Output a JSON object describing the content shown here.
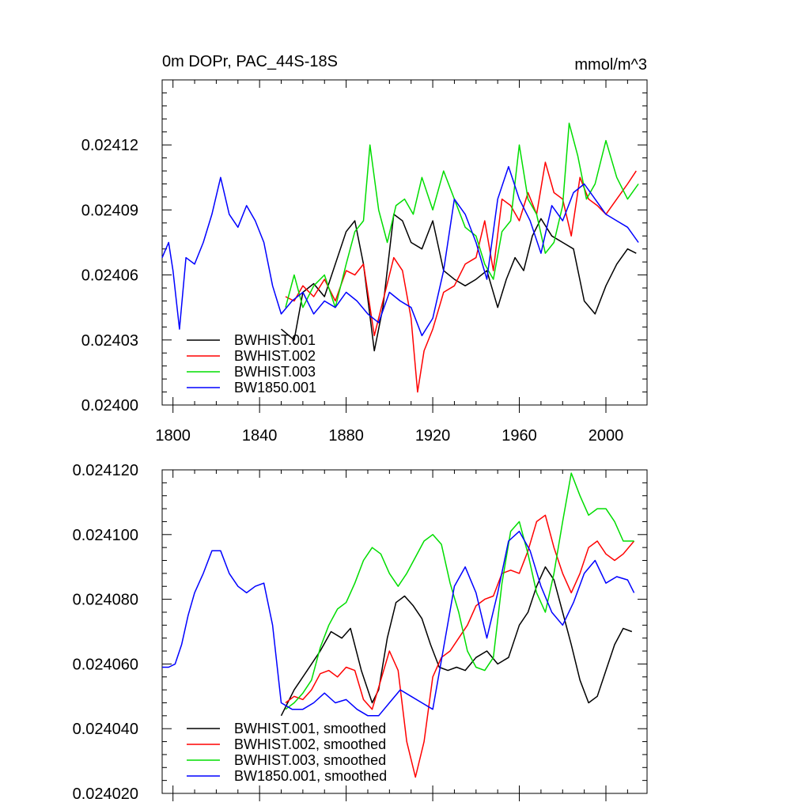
{
  "chart_data": [
    {
      "type": "line",
      "title": "0m DOPr, PAC_44S-18S",
      "units": "mmol/m^3",
      "xlim": [
        1795,
        2019
      ],
      "ylim": [
        0.024,
        0.02415
      ],
      "x_ticks": [
        "1800",
        "1840",
        "1880",
        "1920",
        "1960",
        "2000"
      ],
      "y_ticks": [
        "0.02400",
        "0.02403",
        "0.02406",
        "0.02409",
        "0.02412"
      ],
      "series": [
        {
          "name": "BWHIST.001",
          "color": "#000000",
          "x": [
            1850,
            1856,
            1860,
            1865,
            1870,
            1875,
            1880,
            1884,
            1888,
            1893,
            1897,
            1902,
            1906,
            1910,
            1915,
            1920,
            1925,
            1930,
            1935,
            1940,
            1945,
            1950,
            1954,
            1958,
            1962,
            1966,
            1970,
            1975,
            1980,
            1985,
            1990,
            1995,
            2000,
            2005,
            2010,
            2014
          ],
          "y": [
            0.024035,
            0.02403,
            0.024052,
            0.024056,
            0.02405,
            0.024065,
            0.02408,
            0.024085,
            0.024065,
            0.024025,
            0.024045,
            0.024088,
            0.024085,
            0.024075,
            0.024072,
            0.024085,
            0.024062,
            0.024058,
            0.024055,
            0.024058,
            0.024062,
            0.024045,
            0.024058,
            0.024068,
            0.024062,
            0.024078,
            0.024086,
            0.024078,
            0.024075,
            0.024072,
            0.024048,
            0.024042,
            0.024055,
            0.024065,
            0.024072,
            0.02407
          ]
        },
        {
          "name": "BWHIST.002",
          "color": "#ff0000",
          "x": [
            1852,
            1856,
            1860,
            1865,
            1870,
            1875,
            1880,
            1884,
            1888,
            1893,
            1897,
            1902,
            1906,
            1910,
            1913,
            1916,
            1920,
            1925,
            1930,
            1935,
            1940,
            1944,
            1948,
            1952,
            1956,
            1960,
            1964,
            1968,
            1972,
            1976,
            1980,
            1984,
            1988,
            1992,
            1996,
            2000,
            2005,
            2010,
            2014
          ],
          "y": [
            0.02405,
            0.024048,
            0.024055,
            0.02405,
            0.024058,
            0.024048,
            0.024062,
            0.02406,
            0.024065,
            0.024032,
            0.024048,
            0.024068,
            0.024062,
            0.02404,
            0.024006,
            0.024025,
            0.024035,
            0.024052,
            0.024055,
            0.024065,
            0.024068,
            0.024085,
            0.024062,
            0.024095,
            0.024092,
            0.024085,
            0.024098,
            0.024088,
            0.024112,
            0.024098,
            0.024095,
            0.024078,
            0.024105,
            0.024095,
            0.024092,
            0.024088,
            0.024095,
            0.024102,
            0.024108
          ]
        },
        {
          "name": "BWHIST.003",
          "color": "#00dd00",
          "x": [
            1852,
            1856,
            1860,
            1865,
            1870,
            1875,
            1880,
            1884,
            1888,
            1891,
            1895,
            1899,
            1903,
            1907,
            1911,
            1915,
            1920,
            1925,
            1930,
            1935,
            1940,
            1944,
            1948,
            1952,
            1956,
            1960,
            1964,
            1968,
            1972,
            1976,
            1980,
            1983,
            1987,
            1991,
            1995,
            2000,
            2005,
            2010,
            2015
          ],
          "y": [
            0.024045,
            0.02406,
            0.024045,
            0.024055,
            0.02406,
            0.024045,
            0.024065,
            0.02408,
            0.024085,
            0.02412,
            0.02409,
            0.024075,
            0.024092,
            0.024095,
            0.024088,
            0.024105,
            0.02409,
            0.024108,
            0.024095,
            0.024082,
            0.024078,
            0.024065,
            0.024058,
            0.02408,
            0.024085,
            0.02412,
            0.024095,
            0.024088,
            0.02407,
            0.024075,
            0.024092,
            0.02413,
            0.024115,
            0.024095,
            0.024102,
            0.024122,
            0.024105,
            0.024095,
            0.024102
          ]
        },
        {
          "name": "BW1850.001",
          "color": "#0000ff",
          "x": [
            1795,
            1798,
            1800,
            1803,
            1806,
            1810,
            1814,
            1818,
            1822,
            1826,
            1830,
            1834,
            1838,
            1842,
            1846,
            1850,
            1855,
            1860,
            1865,
            1870,
            1875,
            1880,
            1885,
            1890,
            1895,
            1900,
            1905,
            1910,
            1915,
            1920,
            1925,
            1930,
            1935,
            1940,
            1945,
            1950,
            1955,
            1960,
            1965,
            1970,
            1975,
            1980,
            1985,
            1990,
            1995,
            2000,
            2005,
            2010,
            2015
          ],
          "y": [
            0.024068,
            0.024075,
            0.024062,
            0.024035,
            0.024068,
            0.024065,
            0.024075,
            0.024088,
            0.024105,
            0.024088,
            0.024082,
            0.024092,
            0.024085,
            0.024075,
            0.024055,
            0.024042,
            0.024048,
            0.024052,
            0.024042,
            0.024048,
            0.024045,
            0.024052,
            0.024048,
            0.024042,
            0.024038,
            0.024052,
            0.024048,
            0.024045,
            0.024032,
            0.02404,
            0.024062,
            0.024095,
            0.024088,
            0.024075,
            0.024058,
            0.024095,
            0.02411,
            0.024095,
            0.024085,
            0.02407,
            0.024092,
            0.024085,
            0.024098,
            0.024102,
            0.024095,
            0.024088,
            0.024085,
            0.024082,
            0.024075
          ]
        }
      ]
    },
    {
      "type": "line",
      "xlim": [
        1795,
        2019
      ],
      "ylim": [
        0.02402,
        0.02412
      ],
      "x_ticks": [
        "1800",
        "1840",
        "1880",
        "1920",
        "1960",
        "2000"
      ],
      "y_ticks": [
        "0.024020",
        "0.024040",
        "0.024060",
        "0.024080",
        "0.024100",
        "0.024120"
      ],
      "series": [
        {
          "name": "BWHIST.001, smoothed",
          "color": "#000000",
          "x": [
            1850,
            1856,
            1862,
            1868,
            1873,
            1878,
            1882,
            1887,
            1892,
            1895,
            1899,
            1903,
            1907,
            1911,
            1915,
            1919,
            1923,
            1927,
            1931,
            1935,
            1940,
            1945,
            1950,
            1955,
            1960,
            1964,
            1968,
            1972,
            1976,
            1980,
            1984,
            1988,
            1992,
            1996,
            2000,
            2004,
            2008,
            2012
          ],
          "y": [
            0.024044,
            0.024052,
            0.024058,
            0.024064,
            0.02407,
            0.024068,
            0.024071,
            0.024058,
            0.024048,
            0.024052,
            0.024068,
            0.024079,
            0.024081,
            0.024078,
            0.024074,
            0.024066,
            0.024059,
            0.024058,
            0.024059,
            0.024058,
            0.024062,
            0.024064,
            0.02406,
            0.024062,
            0.024072,
            0.024076,
            0.024084,
            0.02409,
            0.024086,
            0.024076,
            0.024066,
            0.024055,
            0.024048,
            0.02405,
            0.024058,
            0.024066,
            0.024071,
            0.02407
          ]
        },
        {
          "name": "BWHIST.002, smoothed",
          "color": "#ff0000",
          "x": [
            1852,
            1856,
            1860,
            1864,
            1868,
            1872,
            1876,
            1880,
            1884,
            1888,
            1892,
            1896,
            1900,
            1904,
            1908,
            1912,
            1916,
            1920,
            1924,
            1928,
            1932,
            1936,
            1940,
            1944,
            1948,
            1952,
            1956,
            1960,
            1964,
            1968,
            1972,
            1976,
            1980,
            1984,
            1988,
            1992,
            1996,
            2000,
            2004,
            2008,
            2013
          ],
          "y": [
            0.024048,
            0.02405,
            0.024049,
            0.024052,
            0.024057,
            0.024058,
            0.024056,
            0.024059,
            0.024058,
            0.024049,
            0.024046,
            0.024055,
            0.024064,
            0.024058,
            0.024036,
            0.024025,
            0.024036,
            0.024056,
            0.024062,
            0.024064,
            0.024068,
            0.024072,
            0.024078,
            0.02408,
            0.024081,
            0.024088,
            0.024089,
            0.024088,
            0.024095,
            0.024104,
            0.024106,
            0.024096,
            0.024088,
            0.024082,
            0.024088,
            0.024096,
            0.024098,
            0.024094,
            0.024092,
            0.024094,
            0.024098
          ]
        },
        {
          "name": "BWHIST.003, smoothed",
          "color": "#00dd00",
          "x": [
            1852,
            1856,
            1860,
            1864,
            1868,
            1872,
            1876,
            1880,
            1884,
            1888,
            1892,
            1896,
            1900,
            1904,
            1908,
            1912,
            1916,
            1920,
            1924,
            1928,
            1932,
            1936,
            1940,
            1944,
            1948,
            1952,
            1956,
            1960,
            1964,
            1968,
            1972,
            1976,
            1980,
            1984,
            1988,
            1992,
            1996,
            2000,
            2004,
            2008,
            2013
          ],
          "y": [
            0.024046,
            0.024048,
            0.024051,
            0.024055,
            0.024065,
            0.024072,
            0.024077,
            0.024079,
            0.024085,
            0.024092,
            0.024096,
            0.024094,
            0.024088,
            0.024084,
            0.024088,
            0.024093,
            0.024098,
            0.0241,
            0.024097,
            0.024085,
            0.024076,
            0.024064,
            0.024059,
            0.024058,
            0.024062,
            0.024085,
            0.024101,
            0.024104,
            0.024094,
            0.024082,
            0.024076,
            0.024088,
            0.024104,
            0.024119,
            0.024112,
            0.024106,
            0.024108,
            0.024108,
            0.024104,
            0.024098,
            0.024098
          ]
        },
        {
          "name": "BW1850.001, smoothed",
          "color": "#0000ff",
          "x": [
            1795,
            1798,
            1801,
            1804,
            1807,
            1810,
            1814,
            1818,
            1822,
            1826,
            1830,
            1834,
            1838,
            1842,
            1846,
            1850,
            1855,
            1860,
            1865,
            1870,
            1875,
            1880,
            1885,
            1890,
            1895,
            1900,
            1905,
            1910,
            1915,
            1920,
            1925,
            1930,
            1935,
            1940,
            1945,
            1950,
            1955,
            1960,
            1965,
            1970,
            1975,
            1980,
            1985,
            1990,
            1995,
            2000,
            2005,
            2010,
            2013
          ],
          "y": [
            0.024059,
            0.024059,
            0.02406,
            0.024066,
            0.024075,
            0.024082,
            0.024088,
            0.024095,
            0.024095,
            0.024088,
            0.024084,
            0.024082,
            0.024084,
            0.024085,
            0.024072,
            0.024048,
            0.024046,
            0.024046,
            0.024048,
            0.024051,
            0.024048,
            0.024049,
            0.024046,
            0.024044,
            0.024044,
            0.024048,
            0.024052,
            0.02405,
            0.024048,
            0.024046,
            0.024065,
            0.024084,
            0.02409,
            0.024082,
            0.024068,
            0.024082,
            0.024098,
            0.024101,
            0.024095,
            0.024084,
            0.024076,
            0.024072,
            0.024079,
            0.024088,
            0.024092,
            0.024085,
            0.024087,
            0.024086,
            0.024082
          ]
        }
      ]
    }
  ]
}
